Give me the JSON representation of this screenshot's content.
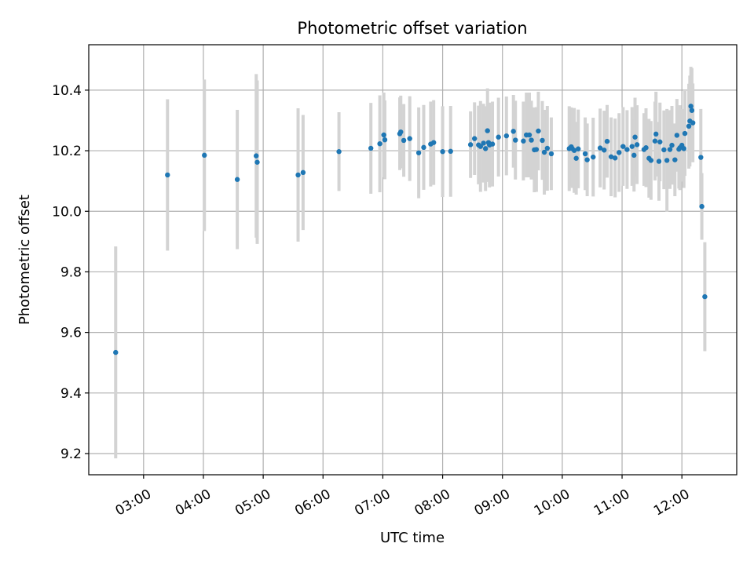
{
  "chart_data": {
    "type": "scatter",
    "title": "Photometric offset variation",
    "xlabel": "UTC time",
    "ylabel": "Photometric offset",
    "xlim": [
      "02:05",
      "12:55"
    ],
    "ylim": [
      9.13,
      10.55
    ],
    "grid": true,
    "x_ticks": [
      "03:00",
      "04:00",
      "05:00",
      "06:00",
      "07:00",
      "08:00",
      "09:00",
      "10:00",
      "11:00",
      "12:00"
    ],
    "y_ticks": [
      "9.2",
      "9.4",
      "9.6",
      "9.8",
      "10.0",
      "10.2",
      "10.4"
    ],
    "colors": {
      "marker": "#1f77b4",
      "errorbar": "#d3d3d3",
      "grid": "#b0b0b0"
    },
    "series": [
      {
        "x": [
          "02:32",
          "03:24",
          "04:01",
          "04:34",
          "04:53",
          "04:54",
          "05:35",
          "05:40",
          "06:16",
          "06:48",
          "06:57",
          "07:01",
          "07:02",
          "07:17",
          "07:18",
          "07:21",
          "07:27",
          "07:36",
          "07:41",
          "07:48",
          "07:51",
          "08:00",
          "08:08",
          "08:28",
          "08:32",
          "08:36",
          "08:38",
          "08:41",
          "08:43",
          "08:45",
          "08:46",
          "08:47",
          "08:50",
          "08:56",
          "09:04",
          "09:11",
          "09:13",
          "09:21",
          "09:24",
          "09:27",
          "09:29",
          "09:32",
          "09:34",
          "09:36",
          "09:40",
          "09:42",
          "09:45",
          "09:49",
          "10:07",
          "10:09",
          "10:10",
          "10:12",
          "10:14",
          "10:16",
          "10:23",
          "10:25",
          "10:31",
          "10:38",
          "10:42",
          "10:45",
          "10:49",
          "10:53",
          "10:57",
          "11:01",
          "11:05",
          "11:10",
          "11:12",
          "11:13",
          "11:15",
          "11:22",
          "11:24",
          "11:27",
          "11:29",
          "11:33",
          "11:34",
          "11:37",
          "11:38",
          "11:42",
          "11:45",
          "11:48",
          "11:50",
          "11:53",
          "11:55",
          "11:57",
          "11:58",
          "12:00",
          "12:02",
          "12:03",
          "12:07",
          "12:08",
          "12:09",
          "12:10",
          "12:11",
          "12:19",
          "12:20",
          "12:23"
        ],
        "y": [
          9.534,
          10.12,
          10.185,
          10.105,
          10.183,
          10.162,
          10.12,
          10.128,
          10.197,
          10.208,
          10.223,
          10.252,
          10.236,
          10.256,
          10.262,
          10.234,
          10.24,
          10.193,
          10.211,
          10.222,
          10.227,
          10.197,
          10.198,
          10.22,
          10.24,
          10.219,
          10.214,
          10.225,
          10.207,
          10.266,
          10.227,
          10.219,
          10.222,
          10.245,
          10.249,
          10.264,
          10.235,
          10.232,
          10.252,
          10.252,
          10.235,
          10.203,
          10.204,
          10.265,
          10.234,
          10.195,
          10.208,
          10.19,
          10.207,
          10.213,
          10.207,
          10.201,
          10.175,
          10.206,
          10.19,
          10.17,
          10.179,
          10.209,
          10.202,
          10.231,
          10.18,
          10.176,
          10.194,
          10.214,
          10.204,
          10.214,
          10.185,
          10.245,
          10.22,
          10.204,
          10.21,
          10.175,
          10.168,
          10.232,
          10.255,
          10.165,
          10.229,
          10.203,
          10.168,
          10.204,
          10.218,
          10.17,
          10.251,
          10.205,
          10.21,
          10.218,
          10.207,
          10.257,
          10.281,
          10.298,
          10.347,
          10.333,
          10.292,
          10.178,
          10.016,
          9.718
        ],
        "err": [
          0.35,
          0.25,
          0.25,
          0.23,
          0.27,
          0.27,
          0.22,
          0.19,
          0.13,
          0.15,
          0.16,
          0.14,
          0.13,
          0.12,
          0.12,
          0.12,
          0.14,
          0.15,
          0.14,
          0.14,
          0.14,
          0.15,
          0.15,
          0.11,
          0.12,
          0.13,
          0.15,
          0.13,
          0.14,
          0.14,
          0.13,
          0.14,
          0.14,
          0.13,
          0.13,
          0.12,
          0.13,
          0.13,
          0.14,
          0.14,
          0.13,
          0.14,
          0.14,
          0.13,
          0.13,
          0.14,
          0.14,
          0.12,
          0.14,
          0.13,
          0.13,
          0.14,
          0.12,
          0.13,
          0.12,
          0.12,
          0.13,
          0.13,
          0.13,
          0.12,
          0.13,
          0.13,
          0.13,
          0.13,
          0.13,
          0.13,
          0.12,
          0.13,
          0.13,
          0.12,
          0.13,
          0.13,
          0.13,
          0.13,
          0.14,
          0.13,
          0.13,
          0.13,
          0.17,
          0.13,
          0.13,
          0.12,
          0.12,
          0.13,
          0.14,
          0.12,
          0.13,
          0.14,
          0.14,
          0.15,
          0.13,
          0.14,
          0.13,
          0.16,
          0.11,
          0.18
        ]
      }
    ]
  }
}
